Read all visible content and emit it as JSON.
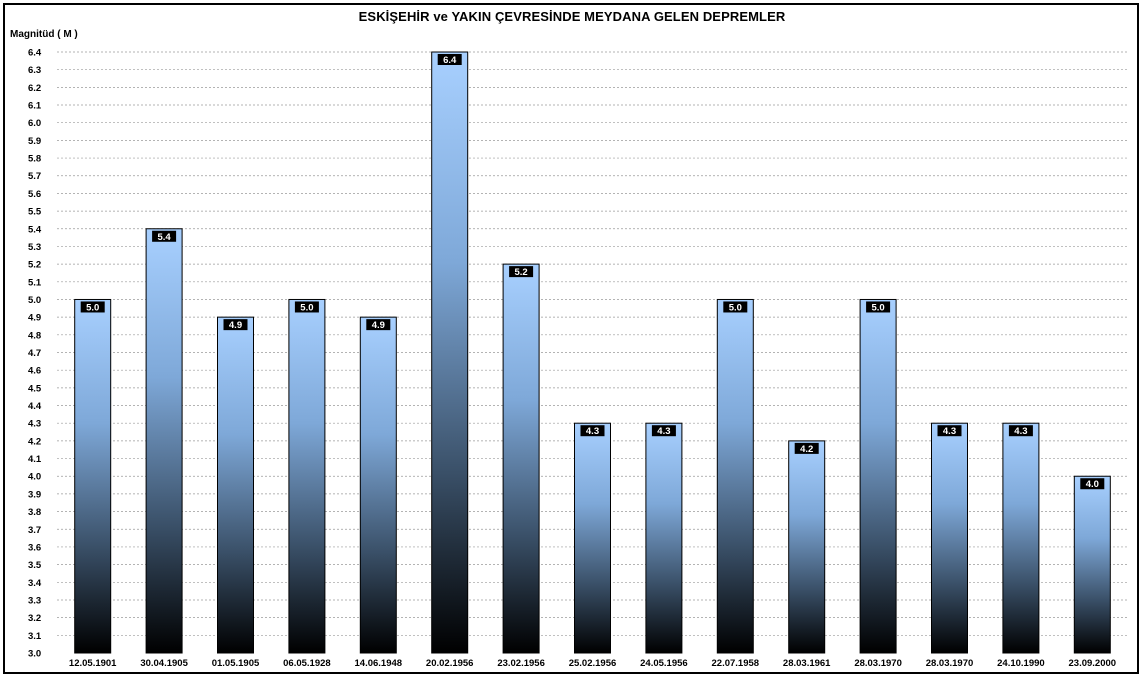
{
  "chart_data": {
    "type": "bar",
    "title": "ESKİŞEHİR ve YAKIN ÇEVRESİNDE MEYDANA GELEN DEPREMLER",
    "ylabel": "Magnitüd ( M )",
    "xlabel": "",
    "ylim": [
      3.0,
      6.4
    ],
    "ytick_step": 0.1,
    "grid": true,
    "categories": [
      "12.05.1901",
      "30.04.1905",
      "01.05.1905",
      "06.05.1928",
      "14.06.1948",
      "20.02.1956",
      "23.02.1956",
      "25.02.1956",
      "24.05.1956",
      "22.07.1958",
      "28.03.1961",
      "28.03.1970",
      "28.03.1970",
      "24.10.1990",
      "23.09.2000"
    ],
    "values": [
      5.0,
      5.4,
      4.9,
      5.0,
      4.9,
      6.4,
      5.2,
      4.3,
      4.3,
      5.0,
      4.2,
      5.0,
      4.3,
      4.3,
      4.0
    ],
    "data_labels": [
      "5.0",
      "5.4",
      "4.9",
      "5.0",
      "4.9",
      "6.4",
      "5.2",
      "4.3",
      "4.3",
      "5.0",
      "4.2",
      "5.0",
      "4.3",
      "4.3",
      "4.0"
    ],
    "colors": {
      "bar_top": "#a8d0ff",
      "bar_bottom": "#000000",
      "grid": "#9a9a9a",
      "label_box": "#000000"
    }
  }
}
